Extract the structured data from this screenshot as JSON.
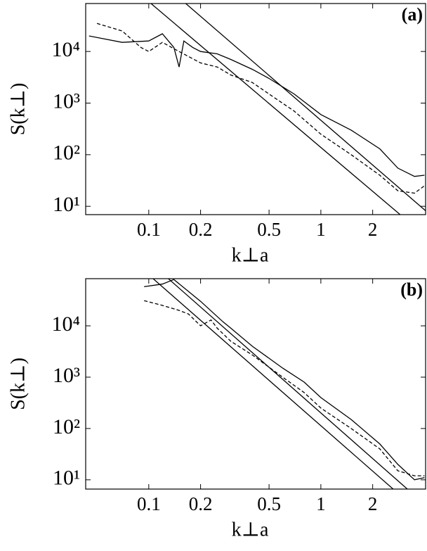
{
  "chart_data": [
    {
      "type": "line",
      "annotation": "(a)",
      "x_label": "k⊥a",
      "y_label": "S(k⊥)",
      "xscale": "log",
      "yscale": "log",
      "xlim": [
        0.043,
        4.06
      ],
      "ylim": [
        6.9,
        85000
      ],
      "xticks": [
        0.1,
        0.2,
        0.5,
        1,
        2
      ],
      "yticks": [
        {
          "value": 10,
          "label": "10¹"
        },
        {
          "value": 100,
          "label": "10²"
        },
        {
          "value": 1000,
          "label": "10³"
        },
        {
          "value": 10000,
          "label": "10⁴"
        }
      ],
      "series": [
        {
          "color": "#000000",
          "linestyle": "solid",
          "x": [
            0.045,
            0.07,
            0.1,
            0.12,
            0.14,
            0.15,
            0.16,
            0.18,
            0.2,
            0.25,
            0.3,
            0.4,
            0.5,
            0.7,
            1,
            1.5,
            2.2,
            2.8,
            3.5,
            4
          ],
          "values": [
            20000,
            15000,
            16000,
            22000,
            12000,
            5000,
            16000,
            12000,
            10000,
            9000,
            7000,
            4500,
            3000,
            1500,
            600,
            300,
            130,
            55,
            38,
            40
          ]
        },
        {
          "color": "#000000",
          "linestyle": "dashed",
          "x": [
            0.05,
            0.07,
            0.09,
            0.1,
            0.12,
            0.15,
            0.2,
            0.25,
            0.3,
            0.4,
            0.5,
            0.7,
            1,
            1.5,
            2.2,
            2.8,
            3.5,
            4
          ],
          "values": [
            35000,
            25000,
            12000,
            10000,
            15000,
            10000,
            6000,
            5000,
            3500,
            2500,
            1500,
            700,
            250,
            100,
            40,
            20,
            18,
            25
          ]
        },
        {
          "color": "#000000",
          "linestyle": "solid",
          "x": [
            0.103,
            2.89
          ],
          "values": [
            85000,
            6.9
          ]
        },
        {
          "color": "#000000",
          "linestyle": "solid",
          "x": [
            0.164,
            4.06
          ],
          "values": [
            85000,
            8.2
          ]
        }
      ]
    },
    {
      "type": "line",
      "annotation": "(b)",
      "x_label": "k⊥a",
      "y_label": "S(k⊥)",
      "xscale": "log",
      "yscale": "log",
      "xlim": [
        0.043,
        4.06
      ],
      "ylim": [
        6.6,
        83000
      ],
      "xticks": [
        0.1,
        0.2,
        0.5,
        1,
        2
      ],
      "yticks": [
        {
          "value": 10,
          "label": "10¹"
        },
        {
          "value": 100,
          "label": "10²"
        },
        {
          "value": 1000,
          "label": "10³"
        },
        {
          "value": 10000,
          "label": "10⁴"
        }
      ],
      "series": [
        {
          "color": "#000000",
          "linestyle": "solid",
          "x": [
            0.094,
            0.12,
            0.14,
            0.2,
            0.27,
            0.3,
            0.4,
            0.6,
            0.8,
            1,
            1.5,
            2.2,
            2.8,
            3.5,
            4
          ],
          "values": [
            58000,
            65000,
            80000,
            30000,
            12000,
            9000,
            4000,
            1500,
            800,
            400,
            150,
            50,
            20,
            10,
            11
          ]
        },
        {
          "color": "#000000",
          "linestyle": "dashed",
          "x": [
            0.094,
            0.12,
            0.15,
            0.17,
            0.2,
            0.23,
            0.25,
            0.3,
            0.4,
            0.6,
            0.8,
            1,
            1.5,
            2.2,
            2.8,
            3.5,
            4
          ],
          "values": [
            31000,
            25000,
            20000,
            17000,
            10000,
            13000,
            9000,
            5000,
            2700,
            1000,
            500,
            250,
            100,
            40,
            15,
            12,
            12
          ]
        },
        {
          "color": "#000000",
          "linestyle": "solid",
          "x": [
            0.106,
            2.63
          ],
          "values": [
            83000,
            6.6
          ]
        },
        {
          "color": "#000000",
          "linestyle": "solid",
          "x": [
            0.13,
            3.18
          ],
          "values": [
            83000,
            6.6
          ]
        }
      ]
    }
  ]
}
